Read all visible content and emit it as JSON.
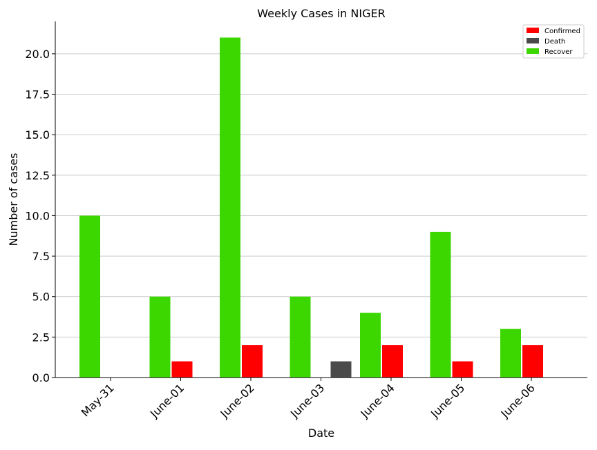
{
  "chart_data": {
    "type": "bar",
    "title": "Weekly Cases in NIGER",
    "xlabel": "Date",
    "ylabel": "Number of cases",
    "categories": [
      "May-31",
      "June-01",
      "June-02",
      "June-03",
      "June-04",
      "June-05",
      "June-06"
    ],
    "series": [
      {
        "name": "Recover",
        "color": "#3cd700",
        "values": [
          10,
          5,
          21,
          5,
          4,
          9,
          3
        ]
      },
      {
        "name": "Confirmed",
        "color": "#ff0000",
        "values": [
          0,
          1,
          2,
          0,
          2,
          1,
          2
        ]
      },
      {
        "name": "Death",
        "color": "#4a4a4a",
        "values": [
          0,
          0,
          0,
          1,
          0,
          0,
          0
        ]
      }
    ],
    "ylim": [
      0,
      22
    ],
    "yticks": [
      "0.0",
      "2.5",
      "5.0",
      "7.5",
      "10.0",
      "12.5",
      "15.0",
      "17.5",
      "20.0"
    ],
    "grid": "horizontal",
    "legend": {
      "position": "top-right",
      "entries": [
        {
          "label": "Confirmed",
          "color": "#ff0000"
        },
        {
          "label": "Death",
          "color": "#4a4a4a"
        },
        {
          "label": "Recover",
          "color": "#3cd700"
        }
      ]
    }
  }
}
